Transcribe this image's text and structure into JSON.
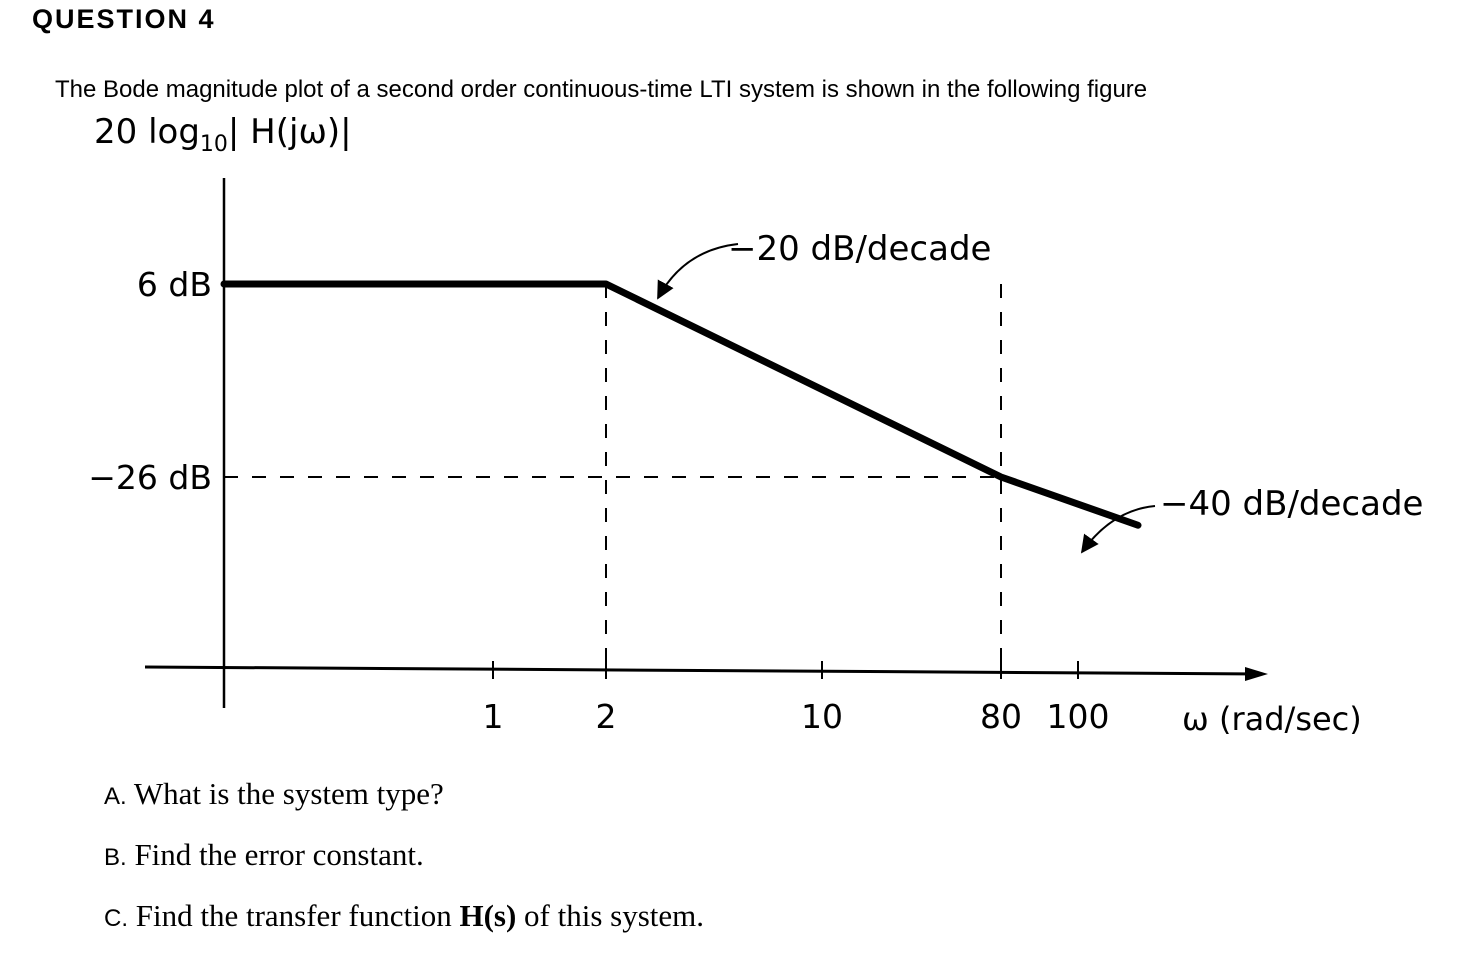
{
  "question": {
    "title": "QUESTION 4",
    "prompt": "The Bode magnitude plot of a second order continuous-time LTI system is shown in the following figure"
  },
  "chart_data": {
    "type": "line",
    "ylabel_prefix": "20 log",
    "ylabel_sub": "10",
    "ylabel_suffix": "| H(jω)|",
    "xlabel": "ω (rad/sec)",
    "x_scale": "log",
    "y_ticks": [
      {
        "value": 6,
        "label": "6 dB"
      },
      {
        "value": -26,
        "label": "−26 dB"
      }
    ],
    "x_ticks": [
      {
        "value": 1,
        "label": "1"
      },
      {
        "value": 2,
        "label": "2"
      },
      {
        "value": 10,
        "label": "10"
      },
      {
        "value": 80,
        "label": "80"
      },
      {
        "value": 100,
        "label": "100"
      }
    ],
    "series": [
      {
        "x": [
          0.11,
          2,
          80,
          130
        ],
        "y": [
          6,
          6,
          -26,
          -34
        ]
      }
    ],
    "guides": [
      {
        "from": [
          0.11,
          -26
        ],
        "to": [
          80,
          -26
        ]
      },
      {
        "from": [
          2,
          6
        ],
        "to": [
          2,
          -45
        ]
      },
      {
        "from": [
          80,
          6
        ],
        "to": [
          80,
          -45
        ]
      }
    ],
    "annotations": [
      {
        "text": "−20 dB/decade",
        "pointsTo": [
          7,
          0
        ]
      },
      {
        "text": "−40 dB/decade",
        "pointsTo": [
          100,
          -31
        ]
      }
    ]
  },
  "questions": {
    "a": {
      "letter": "A.",
      "text": " What is the system  type?"
    },
    "b": {
      "letter": "B.",
      "text": " Find the error constant."
    },
    "c": {
      "letter": "C.",
      "text_before": " Find the transfer function ",
      "bold": "H(s)",
      "text_after": " of this system."
    }
  }
}
